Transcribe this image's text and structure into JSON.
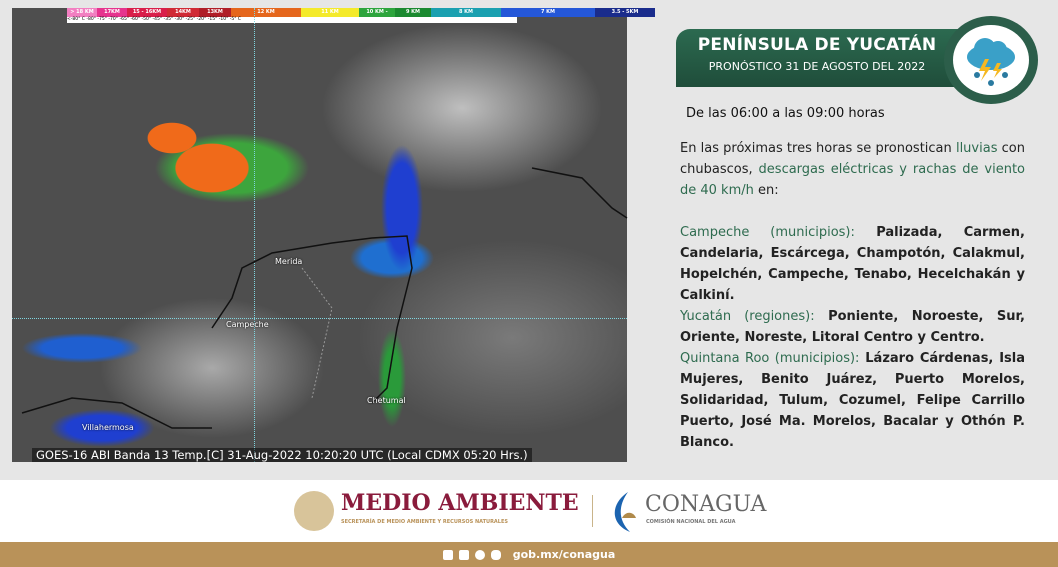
{
  "map": {
    "scale": [
      {
        "label": "> 18 KM",
        "color": "#f27fc1"
      },
      {
        "label": "17KM",
        "color": "#e6348e"
      },
      {
        "label": "15 - 16KM",
        "color": "#d91e4a"
      },
      {
        "label": "14KM",
        "color": "#d02a35"
      },
      {
        "label": "13KM",
        "color": "#b01e28"
      },
      {
        "label": "12 KM",
        "color": "#e5661c"
      },
      {
        "label": "11 KM",
        "color": "#f4ea2a"
      },
      {
        "label": "10 KM -",
        "color": "#2da53d"
      },
      {
        "label": "9 KM",
        "color": "#1b8a30"
      },
      {
        "label": "8 KM",
        "color": "#1aa0b0"
      },
      {
        "label": "7 KM",
        "color": "#2457d8"
      },
      {
        "label": "3.5 - 5KM",
        "color": "#1a2c8c"
      }
    ],
    "scale_ticks": "<-80° C      -80°      -75°        -70°    -65°         -60°  -50°          -45°           -35°     -30°     -25°          -20°                    -15°                  -10°    -5°  C",
    "cities": [
      "Merida",
      "Campeche",
      "Chetumal",
      "Villahermosa"
    ],
    "caption": "GOES-16 ABI Banda 13 Temp.[C] 31-Aug-2022 10:20:20 UTC (Local CDMX  05:20 Hrs.)"
  },
  "header": {
    "title": "PENÍNSULA DE YUCATÁN",
    "subtitle": "PRONÓSTICO 31 DE AGOSTO DEL 2022",
    "icon": "storm-cloud-icon"
  },
  "hours": "De las 06:00 a las 09:00 horas",
  "intro": {
    "t1": "En las próximas tres horas se pronostican ",
    "h1": "lluvias",
    "t2": " con chubascos, ",
    "h2": "descargas eléctricas y rachas de viento de 40 km/h",
    "t3": " en:"
  },
  "states": [
    {
      "name": "Campeche (municipios):",
      "list": " Palizada, Carmen, Candelaria, Escárcega, Champotón, Calakmul, Hopelchén, Campeche, Tenabo, Hecelchakán y Calkiní."
    },
    {
      "name": "Yucatán (regiones):",
      "list": " Poniente, Noroeste, Sur, Oriente, Noreste, Litoral Centro y Centro."
    },
    {
      "name": "Quintana Roo (municipios):",
      "list": " Lázaro Cárdenas, Isla Mujeres, Benito Juárez, Puerto Morelos, Solidaridad, Tulum, Cozumel, Felipe Carrillo Puerto, José Ma. Morelos, Bacalar y Othón P. Blanco."
    }
  ],
  "logos": {
    "semarnat": "MEDIO AMBIENTE",
    "semarnat_sub": "SECRETARÍA DE MEDIO AMBIENTE Y RECURSOS NATURALES",
    "conagua": "CONAGUA",
    "conagua_sub": "COMISIÓN NACIONAL DEL AGUA"
  },
  "footer": {
    "url": "gob.mx/conagua",
    "icons": [
      "facebook-icon",
      "twitter-icon",
      "instagram-icon",
      "youtube-icon"
    ]
  },
  "colors": {
    "green": "#2c6a50",
    "gold": "#b99259",
    "maroon": "#8a1b3c"
  }
}
